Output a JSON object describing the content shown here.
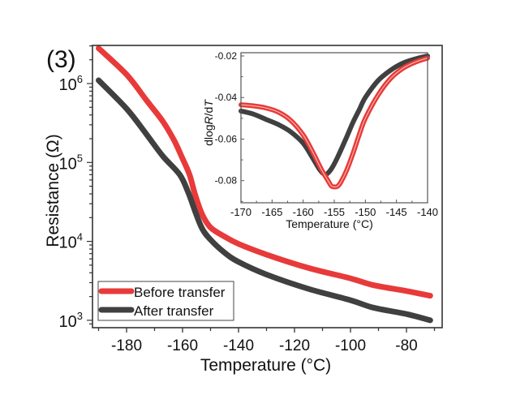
{
  "panel_label": "(3)",
  "chart_data": [
    {
      "type": "line",
      "title": "",
      "xlabel": "Temperature (°C)",
      "ylabel": "Resistance (Ω)",
      "yscale": "log",
      "xlim": [
        -190,
        -70
      ],
      "ylim": [
        800,
        3000000
      ],
      "grid": false,
      "legend_position": "bottom-left",
      "x_ticks": [
        -180,
        -160,
        -140,
        -120,
        -100,
        -80
      ],
      "x_tick_labels": [
        "-180",
        "-160",
        "-140",
        "-120",
        "-100",
        "-80"
      ],
      "y_ticks": [
        1000,
        10000,
        100000,
        1000000
      ],
      "y_tick_labels": [
        {
          "base": "10",
          "exp": "3"
        },
        {
          "base": "10",
          "exp": "4"
        },
        {
          "base": "10",
          "exp": "5"
        },
        {
          "base": "10",
          "exp": "6"
        }
      ],
      "series": [
        {
          "name": "Before transfer",
          "color": "#e83a3a",
          "x": [
            -190,
            -180,
            -173,
            -167,
            -163,
            -160,
            -157.5,
            -155.5,
            -153,
            -150,
            -145,
            -140,
            -130,
            -115,
            -100,
            -92,
            -80,
            -71.5
          ],
          "y": [
            2800000,
            1300000,
            620000,
            330000,
            190000,
            112000,
            70000,
            39000,
            22000,
            15000,
            11500,
            9300,
            6800,
            4600,
            3400,
            2800,
            2350,
            2050
          ]
        },
        {
          "name": "After transfer",
          "color": "#404040",
          "x": [
            -190,
            -180,
            -173,
            -167,
            -161,
            -158,
            -155.5,
            -153,
            -150,
            -145,
            -140,
            -130,
            -115,
            -100,
            -92,
            -80,
            -71.5
          ],
          "y": [
            1100000,
            480000,
            230000,
            120000,
            70000,
            42000,
            24000,
            14500,
            10500,
            7200,
            5500,
            3800,
            2500,
            1800,
            1450,
            1200,
            1000
          ]
        }
      ]
    },
    {
      "type": "line",
      "title": "",
      "xlabel": "Temperature (°C)",
      "ylabel_parts": [
        "dlog",
        "R",
        "/d",
        "T"
      ],
      "ylabel": "dlogR/dT",
      "xlim": [
        -170,
        -140
      ],
      "ylim": [
        -0.09,
        -0.019
      ],
      "grid": false,
      "x_ticks": [
        -170,
        -165,
        -160,
        -155,
        -150,
        -145,
        -140
      ],
      "x_tick_labels": [
        "-170",
        "-165",
        "-160",
        "-155",
        "-150",
        "-145",
        "-140"
      ],
      "y_ticks": [
        -0.08,
        -0.06,
        -0.04,
        -0.02
      ],
      "y_tick_labels": [
        "-0.08",
        "-0.06",
        "-0.04",
        "-0.02"
      ],
      "series": [
        {
          "name": "Before transfer",
          "color": "#e83a3a",
          "x": [
            -170,
            -168,
            -166,
            -164,
            -162,
            -160,
            -158.5,
            -157,
            -156,
            -155.5,
            -155,
            -154.5,
            -154,
            -153,
            -152,
            -151,
            -150,
            -148,
            -146,
            -144,
            -142,
            -140
          ],
          "y": [
            -0.0435,
            -0.044,
            -0.045,
            -0.047,
            -0.051,
            -0.058,
            -0.066,
            -0.075,
            -0.08,
            -0.0825,
            -0.083,
            -0.0828,
            -0.081,
            -0.075,
            -0.067,
            -0.058,
            -0.05,
            -0.039,
            -0.031,
            -0.026,
            -0.023,
            -0.021
          ]
        },
        {
          "name": "After transfer",
          "color": "#404040",
          "x": [
            -170,
            -168,
            -166,
            -164,
            -162,
            -160,
            -158.5,
            -157.5,
            -156.8,
            -156.3,
            -155.5,
            -154.5,
            -153,
            -152,
            -151,
            -150,
            -148,
            -146,
            -144,
            -142,
            -140
          ],
          "y": [
            -0.0465,
            -0.048,
            -0.0505,
            -0.053,
            -0.0565,
            -0.062,
            -0.069,
            -0.074,
            -0.0765,
            -0.077,
            -0.0745,
            -0.069,
            -0.059,
            -0.052,
            -0.046,
            -0.04,
            -0.032,
            -0.027,
            -0.0235,
            -0.0215,
            -0.02
          ]
        }
      ]
    }
  ]
}
